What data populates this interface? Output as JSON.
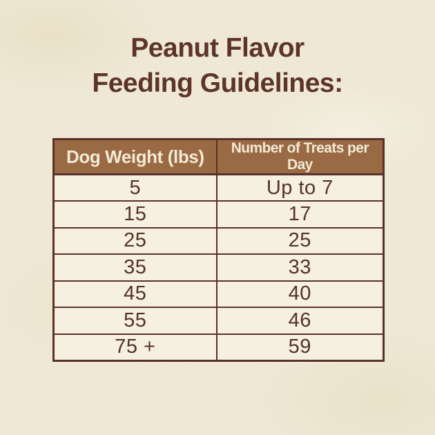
{
  "title": {
    "line1": "Peanut Flavor",
    "line2": "Feeding Guidelines:"
  },
  "table": {
    "columns": [
      "Dog Weight (lbs)",
      "Number of Treats per Day"
    ],
    "rows": [
      [
        "5",
        "Up to 7"
      ],
      [
        "15",
        "17"
      ],
      [
        "25",
        "25"
      ],
      [
        "35",
        "33"
      ],
      [
        "45",
        "40"
      ],
      [
        "55",
        "46"
      ],
      [
        "75 +",
        "59"
      ]
    ]
  },
  "colors": {
    "background": "#f0e9d5",
    "cell_background": "#f6f0e1",
    "header_background": "#9a6a44",
    "header_text": "#f3ead6",
    "border": "#58312a",
    "title_text": "#5d3429",
    "cell_text": "#553127"
  }
}
